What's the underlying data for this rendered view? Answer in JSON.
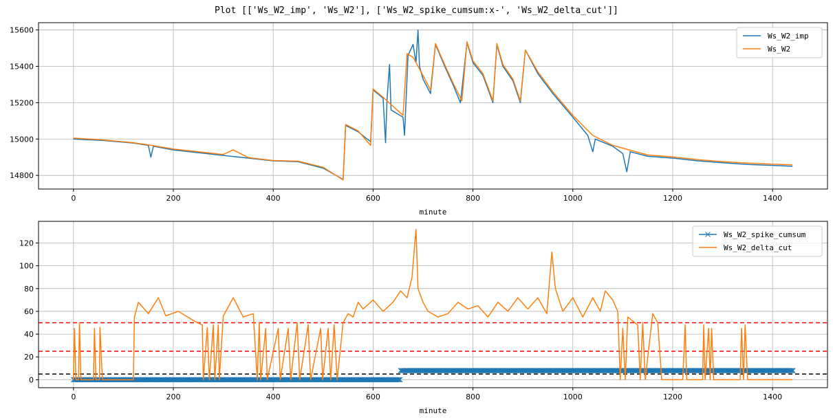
{
  "figure": {
    "title": "Plot [['Ws_W2_imp', 'Ws_W2'], ['Ws_W2_spike_cumsum:x-', 'Ws_W2_delta_cut']]"
  },
  "colors": {
    "blue": "#1f77b4",
    "orange": "#ff7f0e",
    "red": "#ff0000",
    "black": "#000000",
    "grid": "#b0b0b0"
  },
  "chart_data": [
    {
      "type": "line",
      "xlabel": "minute",
      "ylabel": "",
      "xlim": [
        -70,
        1510
      ],
      "ylim": [
        14725,
        15640
      ],
      "xticks": [
        0,
        200,
        400,
        600,
        800,
        1000,
        1200,
        1400
      ],
      "yticks": [
        14800,
        15000,
        15200,
        15400,
        15600
      ],
      "grid": true,
      "legend": "top-right",
      "series": [
        {
          "name": "Ws_W2_imp",
          "color": "blue",
          "points": [
            [
              0,
              15000
            ],
            [
              60,
              14992
            ],
            [
              120,
              14978
            ],
            [
              150,
              14965
            ],
            [
              155,
              14900
            ],
            [
              160,
              14960
            ],
            [
              200,
              14940
            ],
            [
              250,
              14925
            ],
            [
              300,
              14910
            ],
            [
              350,
              14895
            ],
            [
              400,
              14880
            ],
            [
              450,
              14875
            ],
            [
              500,
              14840
            ],
            [
              540,
              14778
            ],
            [
              545,
              15075
            ],
            [
              570,
              15040
            ],
            [
              595,
              14985
            ],
            [
              600,
              15270
            ],
            [
              620,
              15225
            ],
            [
              625,
              14980
            ],
            [
              628,
              15220
            ],
            [
              633,
              15410
            ],
            [
              636,
              15160
            ],
            [
              660,
              15120
            ],
            [
              663,
              15020
            ],
            [
              670,
              15460
            ],
            [
              680,
              15520
            ],
            [
              686,
              15420
            ],
            [
              690,
              15600
            ],
            [
              693,
              15400
            ],
            [
              700,
              15330
            ],
            [
              715,
              15250
            ],
            [
              725,
              15520
            ],
            [
              745,
              15390
            ],
            [
              760,
              15300
            ],
            [
              775,
              15200
            ],
            [
              788,
              15530
            ],
            [
              800,
              15420
            ],
            [
              820,
              15350
            ],
            [
              840,
              15200
            ],
            [
              848,
              15520
            ],
            [
              860,
              15400
            ],
            [
              880,
              15320
            ],
            [
              895,
              15200
            ],
            [
              905,
              15490
            ],
            [
              930,
              15360
            ],
            [
              960,
              15250
            ],
            [
              1000,
              15120
            ],
            [
              1030,
              15020
            ],
            [
              1040,
              14930
            ],
            [
              1045,
              15000
            ],
            [
              1080,
              14960
            ],
            [
              1100,
              14920
            ],
            [
              1108,
              14820
            ],
            [
              1115,
              14930
            ],
            [
              1150,
              14905
            ],
            [
              1200,
              14895
            ],
            [
              1250,
              14880
            ],
            [
              1300,
              14870
            ],
            [
              1350,
              14860
            ],
            [
              1400,
              14855
            ],
            [
              1440,
              14850
            ]
          ]
        },
        {
          "name": "Ws_W2",
          "color": "orange",
          "points": [
            [
              0,
              15005
            ],
            [
              60,
              14995
            ],
            [
              120,
              14980
            ],
            [
              150,
              14968
            ],
            [
              200,
              14945
            ],
            [
              250,
              14930
            ],
            [
              300,
              14915
            ],
            [
              320,
              14940
            ],
            [
              350,
              14898
            ],
            [
              400,
              14882
            ],
            [
              450,
              14878
            ],
            [
              500,
              14845
            ],
            [
              540,
              14775
            ],
            [
              545,
              15080
            ],
            [
              570,
              15045
            ],
            [
              595,
              14965
            ],
            [
              600,
              15275
            ],
            [
              620,
              15230
            ],
            [
              640,
              15180
            ],
            [
              660,
              15130
            ],
            [
              668,
              15470
            ],
            [
              680,
              15450
            ],
            [
              700,
              15350
            ],
            [
              715,
              15270
            ],
            [
              725,
              15525
            ],
            [
              745,
              15400
            ],
            [
              760,
              15310
            ],
            [
              778,
              15210
            ],
            [
              788,
              15535
            ],
            [
              800,
              15430
            ],
            [
              820,
              15360
            ],
            [
              840,
              15210
            ],
            [
              848,
              15525
            ],
            [
              860,
              15410
            ],
            [
              880,
              15330
            ],
            [
              895,
              15210
            ],
            [
              905,
              15490
            ],
            [
              930,
              15370
            ],
            [
              960,
              15260
            ],
            [
              1000,
              15130
            ],
            [
              1040,
              15020
            ],
            [
              1080,
              14965
            ],
            [
              1120,
              14935
            ],
            [
              1150,
              14912
            ],
            [
              1200,
              14902
            ],
            [
              1250,
              14887
            ],
            [
              1300,
              14876
            ],
            [
              1350,
              14868
            ],
            [
              1400,
              14862
            ],
            [
              1440,
              14858
            ]
          ]
        }
      ]
    },
    {
      "type": "line",
      "xlabel": "minute",
      "ylabel": "",
      "xlim": [
        -70,
        1510
      ],
      "ylim": [
        -7,
        139
      ],
      "xticks": [
        0,
        200,
        400,
        600,
        800,
        1000,
        1200,
        1400
      ],
      "yticks": [
        0,
        20,
        40,
        60,
        80,
        100,
        120
      ],
      "grid": true,
      "legend": "top-right",
      "hlines": [
        {
          "y": 50,
          "color": "red",
          "style": "dashed"
        },
        {
          "y": 25,
          "color": "red",
          "style": "dashed"
        },
        {
          "y": 5,
          "color": "black",
          "style": "dashed"
        }
      ],
      "series": [
        {
          "name": "Ws_W2_spike_cumsum",
          "color": "blue",
          "marker": "x",
          "segments": [
            {
              "x_start": 0,
              "x_end": 655,
              "y": 0
            },
            {
              "x_start": 655,
              "x_end": 1442,
              "y": 8
            }
          ]
        },
        {
          "name": "Ws_W2_delta_cut",
          "color": "orange",
          "points": [
            [
              0,
              0
            ],
            [
              2,
              45
            ],
            [
              5,
              0
            ],
            [
              10,
              0
            ],
            [
              12,
              50
            ],
            [
              15,
              0
            ],
            [
              40,
              0
            ],
            [
              42,
              45
            ],
            [
              45,
              0
            ],
            [
              52,
              0
            ],
            [
              53,
              46
            ],
            [
              58,
              0
            ],
            [
              120,
              0
            ],
            [
              122,
              55
            ],
            [
              130,
              68
            ],
            [
              150,
              58
            ],
            [
              170,
              72
            ],
            [
              185,
              56
            ],
            [
              210,
              60
            ],
            [
              240,
              52
            ],
            [
              258,
              48
            ],
            [
              260,
              0
            ],
            [
              268,
              46
            ],
            [
              272,
              0
            ],
            [
              280,
              48
            ],
            [
              283,
              0
            ],
            [
              290,
              48
            ],
            [
              292,
              0
            ],
            [
              300,
              56
            ],
            [
              320,
              72
            ],
            [
              340,
              55
            ],
            [
              360,
              58
            ],
            [
              368,
              0
            ],
            [
              372,
              50
            ],
            [
              375,
              0
            ],
            [
              385,
              45
            ],
            [
              388,
              0
            ],
            [
              410,
              45
            ],
            [
              414,
              0
            ],
            [
              430,
              45
            ],
            [
              435,
              0
            ],
            [
              448,
              50
            ],
            [
              453,
              0
            ],
            [
              470,
              48
            ],
            [
              475,
              0
            ],
            [
              495,
              45
            ],
            [
              499,
              0
            ],
            [
              510,
              45
            ],
            [
              515,
              0
            ],
            [
              522,
              48
            ],
            [
              528,
              0
            ],
            [
              540,
              50
            ],
            [
              550,
              58
            ],
            [
              560,
              55
            ],
            [
              570,
              68
            ],
            [
              580,
              62
            ],
            [
              600,
              70
            ],
            [
              620,
              60
            ],
            [
              640,
              68
            ],
            [
              655,
              78
            ],
            [
              668,
              72
            ],
            [
              678,
              90
            ],
            [
              682,
              112
            ],
            [
              686,
              132
            ],
            [
              690,
              80
            ],
            [
              700,
              68
            ],
            [
              710,
              60
            ],
            [
              730,
              55
            ],
            [
              750,
              58
            ],
            [
              770,
              68
            ],
            [
              790,
              62
            ],
            [
              810,
              65
            ],
            [
              830,
              55
            ],
            [
              850,
              68
            ],
            [
              870,
              60
            ],
            [
              890,
              72
            ],
            [
              910,
              62
            ],
            [
              930,
              72
            ],
            [
              948,
              58
            ],
            [
              958,
              112
            ],
            [
              965,
              80
            ],
            [
              980,
              60
            ],
            [
              1000,
              72
            ],
            [
              1020,
              55
            ],
            [
              1040,
              72
            ],
            [
              1055,
              60
            ],
            [
              1065,
              78
            ],
            [
              1080,
              70
            ],
            [
              1090,
              60
            ],
            [
              1095,
              0
            ],
            [
              1100,
              45
            ],
            [
              1105,
              0
            ],
            [
              1110,
              55
            ],
            [
              1130,
              48
            ],
            [
              1135,
              0
            ],
            [
              1140,
              50
            ],
            [
              1145,
              0
            ],
            [
              1160,
              58
            ],
            [
              1170,
              50
            ],
            [
              1178,
              0
            ],
            [
              1220,
              0
            ],
            [
              1225,
              48
            ],
            [
              1228,
              0
            ],
            [
              1260,
              0
            ],
            [
              1262,
              48
            ],
            [
              1265,
              0
            ],
            [
              1272,
              45
            ],
            [
              1275,
              0
            ],
            [
              1278,
              45
            ],
            [
              1282,
              0
            ],
            [
              1335,
              0
            ],
            [
              1338,
              45
            ],
            [
              1342,
              0
            ],
            [
              1345,
              48
            ],
            [
              1350,
              0
            ],
            [
              1440,
              0
            ]
          ]
        }
      ]
    }
  ]
}
